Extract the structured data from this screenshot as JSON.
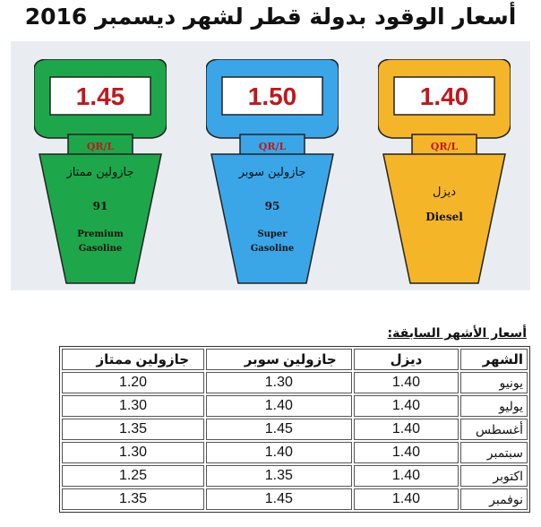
{
  "title": "أسعار الوقود بدولة قطر لشهر ديسمبر 2016",
  "colors": {
    "premium": "#1ea64a",
    "super": "#3aa6e8",
    "diesel": "#f5b529",
    "price_text": "#c0181e"
  },
  "pumps": [
    {
      "key": "premium",
      "price": "1.45",
      "unit": "QR/L",
      "name_ar": "جازولين ممتاز",
      "grade": "91",
      "name_en_1": "Premium",
      "name_en_2": "Gasoline"
    },
    {
      "key": "super",
      "price": "1.50",
      "unit": "QR/L",
      "name_ar": "جازولين سوبر",
      "grade": "95",
      "name_en_1": "Super",
      "name_en_2": "Gasoline"
    },
    {
      "key": "diesel",
      "price": "1.40",
      "unit": "QR/L",
      "name_ar": "ديزل",
      "name_en_1": "Diesel"
    }
  ],
  "previous": {
    "label": "أسعار الأشهر السابقة:",
    "headers": {
      "month": "الشهر",
      "diesel": "ديزل",
      "super": "جازولين سوبر",
      "premium": "جازولين ممتاز"
    },
    "rows": [
      {
        "month": "يونيو",
        "diesel": "1.40",
        "super": "1.30",
        "premium": "1.20"
      },
      {
        "month": "يوليو",
        "diesel": "1.40",
        "super": "1.40",
        "premium": "1.30"
      },
      {
        "month": "أغسطس",
        "diesel": "1.40",
        "super": "1.45",
        "premium": "1.35"
      },
      {
        "month": "سبتمبر",
        "diesel": "1.40",
        "super": "1.40",
        "premium": "1.30"
      },
      {
        "month": "اكتوبر",
        "diesel": "1.40",
        "super": "1.35",
        "premium": "1.25"
      },
      {
        "month": "نوفمبر",
        "diesel": "1.40",
        "super": "1.45",
        "premium": "1.35"
      }
    ]
  }
}
